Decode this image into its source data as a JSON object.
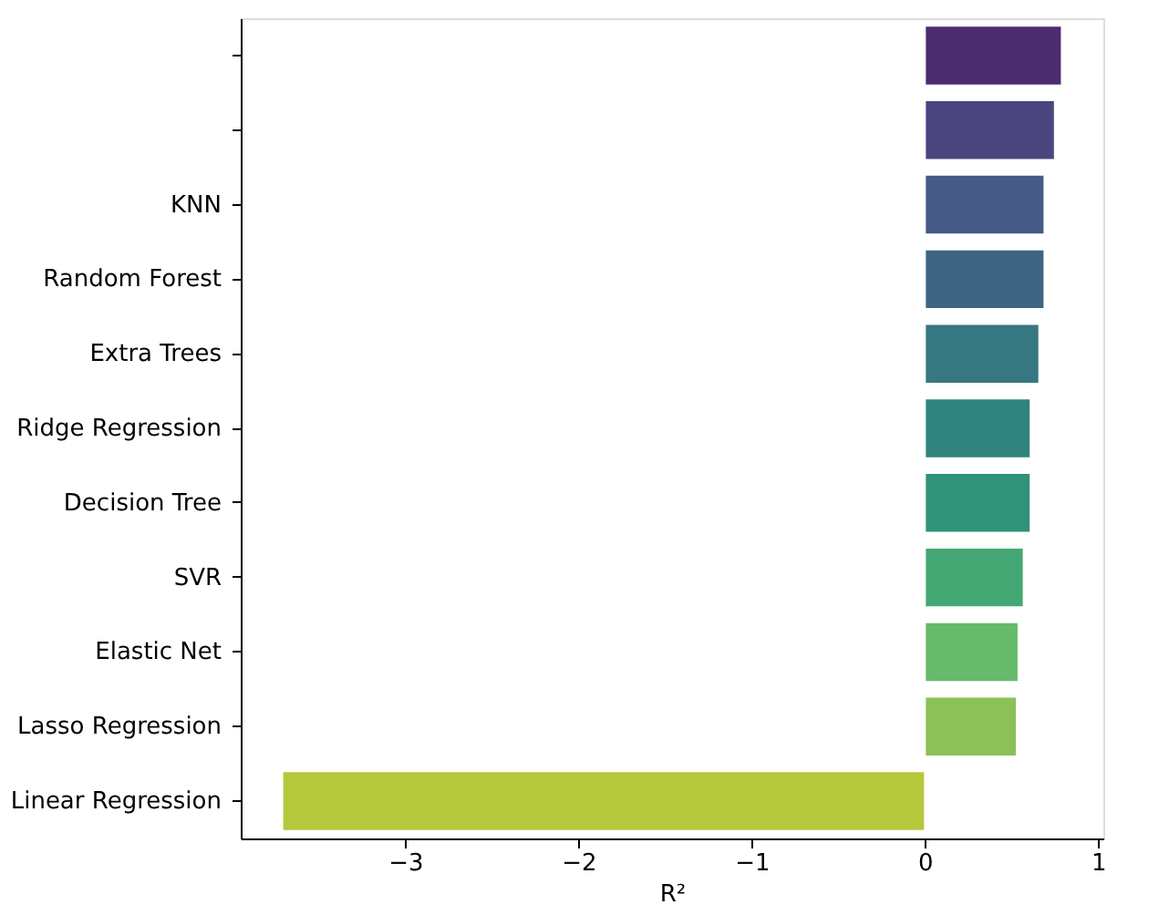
{
  "chart_data": {
    "type": "bar",
    "orientation": "horizontal",
    "xlabel": "R²",
    "categories": [
      null,
      null,
      "KNN",
      "Random Forest",
      "Extra Trees",
      "Ridge Regression",
      "Decision Tree",
      "SVR",
      "Elastic Net",
      "Lasso Regression",
      "Linear Regression"
    ],
    "values": [
      0.79,
      0.75,
      0.69,
      0.69,
      0.66,
      0.61,
      0.61,
      0.57,
      0.54,
      0.53,
      -3.71
    ],
    "colors": [
      "#4a2c6f",
      "#4b4580",
      "#465a86",
      "#3e6683",
      "#377782",
      "#2f847d",
      "#2f9279",
      "#44a874",
      "#66ba6b",
      "#8bc157",
      "#b5c83b"
    ],
    "xlim": [
      -3.95,
      1.03
    ],
    "xticks": [
      -3,
      -2,
      -1,
      0,
      1
    ],
    "grid": false
  }
}
